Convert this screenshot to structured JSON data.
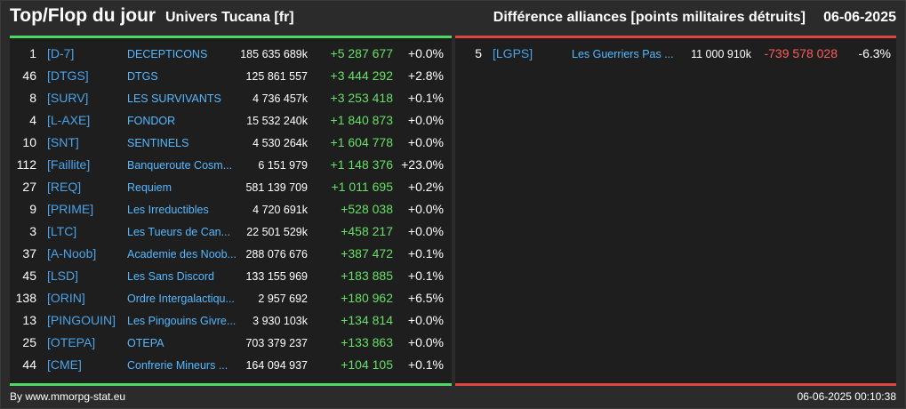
{
  "header": {
    "title": "Top/Flop du jour",
    "universe": "Univers Tucana [fr]",
    "diff_title": "Différence alliances [points militaires détruits]",
    "date": "06-06-2025"
  },
  "colors": {
    "top_accent": "#4cd964",
    "flop_accent": "#e0443e",
    "positive": "#66e066",
    "negative": "#ff5a5a",
    "tag": "#4aa3e8",
    "name": "#55b8ff"
  },
  "top": [
    {
      "rank": "1",
      "tag": "[D-7]",
      "name": "DECEPTICONS",
      "points": "185 635 689k",
      "diff": "+5 287 677",
      "pct": "+0.0%"
    },
    {
      "rank": "46",
      "tag": "[DTGS]",
      "name": "DTGS",
      "points": "125 861 557",
      "diff": "+3 444 292",
      "pct": "+2.8%"
    },
    {
      "rank": "8",
      "tag": "[SURV]",
      "name": "LES SURVIVANTS",
      "points": "4 736 457k",
      "diff": "+3 253 418",
      "pct": "+0.1%"
    },
    {
      "rank": "4",
      "tag": "[L-AXE]",
      "name": "FONDOR",
      "points": "15 532 240k",
      "diff": "+1 840 873",
      "pct": "+0.0%"
    },
    {
      "rank": "10",
      "tag": "[SNT]",
      "name": "SENTINELS",
      "points": "4 530 264k",
      "diff": "+1 604 778",
      "pct": "+0.0%"
    },
    {
      "rank": "112",
      "tag": "[Faillite]",
      "name": "Banqueroute Cosm...",
      "points": "6 151 979",
      "diff": "+1 148 376",
      "pct": "+23.0%"
    },
    {
      "rank": "27",
      "tag": "[REQ]",
      "name": "Requiem",
      "points": "581 139 709",
      "diff": "+1 011 695",
      "pct": "+0.2%"
    },
    {
      "rank": "9",
      "tag": "[PRIME]",
      "name": "Les Irreductibles",
      "points": "4 720 691k",
      "diff": "+528 038",
      "pct": "+0.0%"
    },
    {
      "rank": "3",
      "tag": "[LTC]",
      "name": "Les Tueurs de Can...",
      "points": "22 501 529k",
      "diff": "+458 217",
      "pct": "+0.0%"
    },
    {
      "rank": "37",
      "tag": "[A-Noob]",
      "name": "Academie des Noob...",
      "points": "288 076 676",
      "diff": "+387 472",
      "pct": "+0.1%"
    },
    {
      "rank": "45",
      "tag": "[LSD]",
      "name": "Les Sans Discord",
      "points": "133 155 969",
      "diff": "+183 885",
      "pct": "+0.1%"
    },
    {
      "rank": "138",
      "tag": "[ORIN]",
      "name": "Ordre Intergalactiqu...",
      "points": "2 957 692",
      "diff": "+180 962",
      "pct": "+6.5%"
    },
    {
      "rank": "13",
      "tag": "[PINGOUIN]",
      "name": "Les Pingouins Givre...",
      "points": "3 930 103k",
      "diff": "+134 814",
      "pct": "+0.0%"
    },
    {
      "rank": "25",
      "tag": "[OTEPA]",
      "name": "OTEPA",
      "points": "703 379 237",
      "diff": "+133 863",
      "pct": "+0.0%"
    },
    {
      "rank": "44",
      "tag": "[CME]",
      "name": "Confrerie Mineurs ...",
      "points": "164 094 937",
      "diff": "+104 105",
      "pct": "+0.1%"
    }
  ],
  "flop": [
    {
      "rank": "5",
      "tag": "[LGPS]",
      "name": "Les Guerriers Pas ...",
      "points": "11 000 910k",
      "diff": "-739 578 028",
      "pct": "-6.3%"
    }
  ],
  "footer": {
    "source": "By www.mmorpg-stat.eu",
    "timestamp": "06-06-2025 00:10:38"
  }
}
